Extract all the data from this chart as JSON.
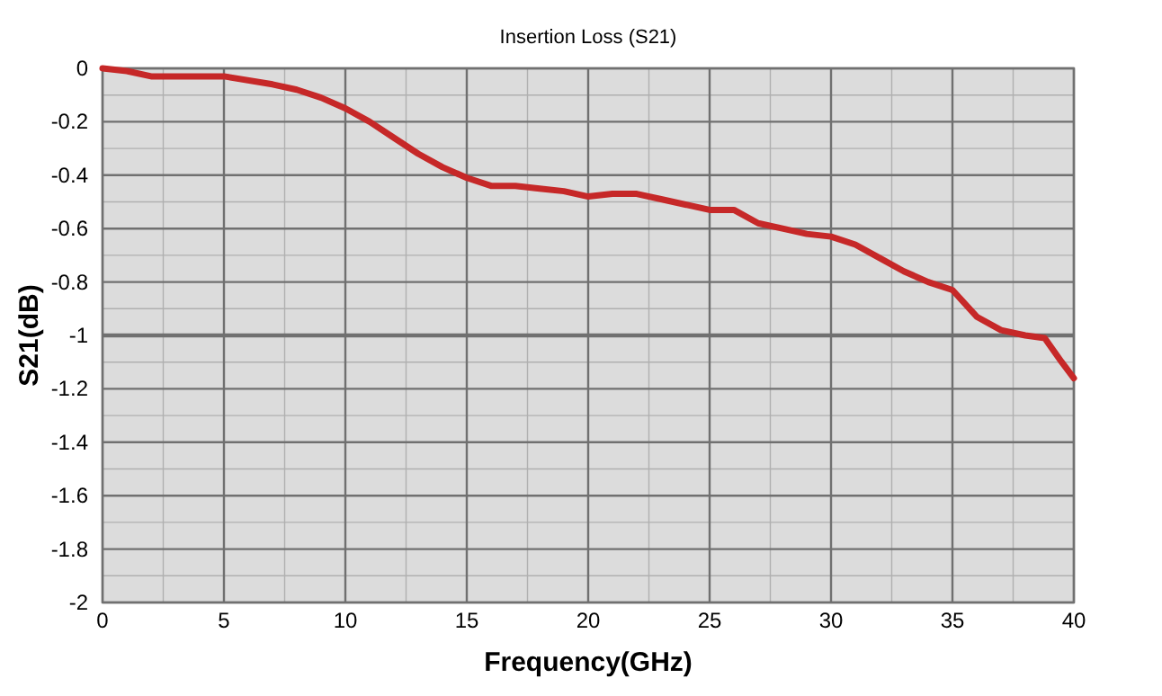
{
  "chart_data": {
    "type": "line",
    "title": "Insertion Loss (S21)",
    "xlabel": "Frequency(GHz)",
    "ylabel": "S21(dB)",
    "x": [
      0,
      1,
      2,
      3,
      5,
      7,
      8,
      9,
      10,
      11,
      12,
      13,
      14,
      15,
      16,
      17,
      18,
      19,
      20,
      21,
      22,
      23,
      24,
      25,
      26,
      27,
      28,
      29,
      30,
      31,
      32,
      33,
      34,
      35,
      36,
      37,
      38,
      38.8,
      39.5,
      40
    ],
    "series": [
      {
        "color": "#c62828",
        "values": [
          0,
          -0.01,
          -0.03,
          -0.03,
          -0.03,
          -0.06,
          -0.08,
          -0.11,
          -0.15,
          -0.2,
          -0.26,
          -0.32,
          -0.37,
          -0.41,
          -0.44,
          -0.44,
          -0.45,
          -0.46,
          -0.48,
          -0.47,
          -0.47,
          -0.49,
          -0.51,
          -0.53,
          -0.53,
          -0.58,
          -0.6,
          -0.62,
          -0.63,
          -0.66,
          -0.71,
          -0.76,
          -0.8,
          -0.83,
          -0.93,
          -0.98,
          -1,
          -1.01,
          -1.1,
          -1.16
        ]
      }
    ],
    "xlim": [
      0,
      40
    ],
    "xticks": [
      0,
      5,
      10,
      15,
      20,
      25,
      30,
      35,
      40
    ],
    "ylim": [
      -2,
      0
    ],
    "yticks": [
      0,
      -0.2,
      -0.4,
      -0.6,
      -0.8,
      -1,
      -1.2,
      -1.4,
      -1.6,
      -1.8,
      -2
    ],
    "grid": true,
    "ref_lines": [
      {
        "axis": "y",
        "value": -1,
        "color": "#707070"
      }
    ]
  }
}
